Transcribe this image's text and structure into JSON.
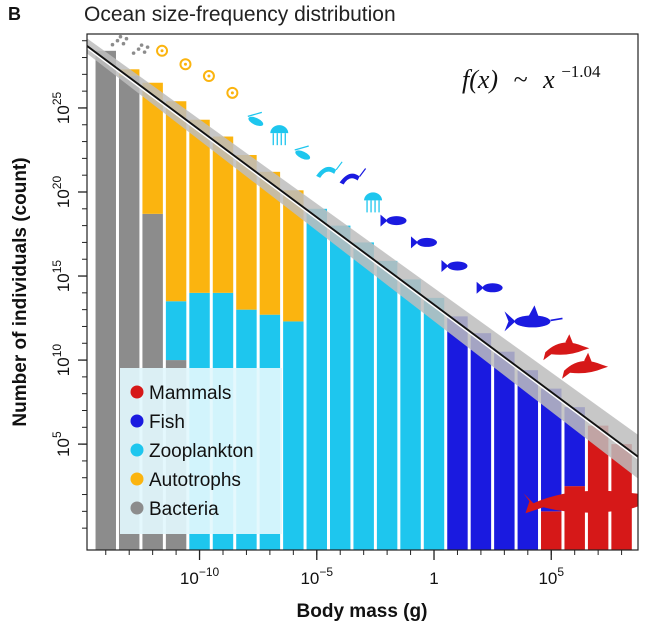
{
  "panel_letter": "B",
  "title": "Ocean size-frequency distribution",
  "formula": {
    "fx": "f(x)",
    "tilde": "~",
    "base": "x",
    "exponent": "−1.04"
  },
  "colors": {
    "bacteria": "#8c8c8c",
    "autotrophs": "#fbb40f",
    "zooplankton": "#1ec6ee",
    "fish": "#1a1ae0",
    "mammals": "#d61818"
  },
  "chart_data": {
    "type": "bar",
    "title": "Ocean size-frequency distribution",
    "xlabel": "Body mass (g)",
    "ylabel": "Number of individuals (count)",
    "x_scale": "log10",
    "y_scale": "log10",
    "xlim_log10": [
      -14.8,
      8.7
    ],
    "ylim_log10": [
      -1.3,
      29.4
    ],
    "x_ticks": [
      {
        "log10": -10,
        "label": "10",
        "exp": "−10"
      },
      {
        "log10": -5,
        "label": "10",
        "exp": "−5"
      },
      {
        "log10": 0,
        "label": "1",
        "exp": ""
      },
      {
        "log10": 5,
        "label": "10",
        "exp": "5"
      }
    ],
    "y_ticks": [
      {
        "log10": 5,
        "label": "10",
        "exp": "5"
      },
      {
        "log10": 10,
        "label": "10",
        "exp": "10"
      },
      {
        "log10": 15,
        "label": "10",
        "exp": "15"
      },
      {
        "log10": 20,
        "label": "10",
        "exp": "20"
      },
      {
        "log10": 25,
        "label": "10",
        "exp": "25"
      }
    ],
    "fit_line": {
      "slope": -1.04,
      "intercept_log10": 13.3
    },
    "legend": {
      "position": "bottom-left",
      "entries": [
        {
          "name": "Mammals",
          "color_key": "mammals"
        },
        {
          "name": "Fish",
          "color_key": "fish"
        },
        {
          "name": "Zooplankton",
          "color_key": "zooplankton"
        },
        {
          "name": "Autotrophs",
          "color_key": "autotrophs"
        },
        {
          "name": "Bacteria",
          "color_key": "bacteria"
        }
      ]
    },
    "bars": [
      {
        "mass_log10": -14.0,
        "count_log10": 28.4,
        "segments": [
          {
            "group": "bacteria",
            "top": 28.4
          }
        ]
      },
      {
        "mass_log10": -13.0,
        "count_log10": 27.3,
        "segments": [
          {
            "group": "bacteria",
            "top": 26.9
          },
          {
            "group": "autotrophs",
            "top": 27.3
          }
        ]
      },
      {
        "mass_log10": -12.0,
        "count_log10": 26.5,
        "segments": [
          {
            "group": "bacteria",
            "top": 18.7
          },
          {
            "group": "autotrophs",
            "top": 26.5
          }
        ]
      },
      {
        "mass_log10": -11.0,
        "count_log10": 25.4,
        "segments": [
          {
            "group": "bacteria",
            "top": 10.0
          },
          {
            "group": "zooplankton",
            "top": 13.5
          },
          {
            "group": "autotrophs",
            "top": 25.4
          }
        ]
      },
      {
        "mass_log10": -10.0,
        "count_log10": 24.3,
        "segments": [
          {
            "group": "zooplankton",
            "top": 14.0
          },
          {
            "group": "autotrophs",
            "top": 24.3
          }
        ]
      },
      {
        "mass_log10": -9.0,
        "count_log10": 23.3,
        "segments": [
          {
            "group": "zooplankton",
            "top": 14.0
          },
          {
            "group": "autotrophs",
            "top": 23.3
          }
        ]
      },
      {
        "mass_log10": -8.0,
        "count_log10": 22.2,
        "segments": [
          {
            "group": "zooplankton",
            "top": 13.0
          },
          {
            "group": "autotrophs",
            "top": 22.2
          }
        ]
      },
      {
        "mass_log10": -7.0,
        "count_log10": 21.2,
        "segments": [
          {
            "group": "zooplankton",
            "top": 12.7
          },
          {
            "group": "autotrophs",
            "top": 21.2
          }
        ]
      },
      {
        "mass_log10": -6.0,
        "count_log10": 20.1,
        "segments": [
          {
            "group": "zooplankton",
            "top": 12.3
          },
          {
            "group": "autotrophs",
            "top": 20.1
          }
        ]
      },
      {
        "mass_log10": -5.0,
        "count_log10": 19.0,
        "segments": [
          {
            "group": "zooplankton",
            "top": 19.0
          }
        ]
      },
      {
        "mass_log10": -4.0,
        "count_log10": 18.0,
        "segments": [
          {
            "group": "zooplankton",
            "top": 18.0
          }
        ]
      },
      {
        "mass_log10": -3.0,
        "count_log10": 17.0,
        "segments": [
          {
            "group": "zooplankton",
            "top": 17.0
          }
        ]
      },
      {
        "mass_log10": -2.0,
        "count_log10": 15.9,
        "segments": [
          {
            "group": "zooplankton",
            "top": 15.9
          }
        ]
      },
      {
        "mass_log10": -1.0,
        "count_log10": 14.8,
        "segments": [
          {
            "group": "zooplankton",
            "top": 14.8
          }
        ]
      },
      {
        "mass_log10": 0.0,
        "count_log10": 13.7,
        "segments": [
          {
            "group": "zooplankton",
            "top": 13.7
          }
        ]
      },
      {
        "mass_log10": 1.0,
        "count_log10": 12.6,
        "segments": [
          {
            "group": "fish",
            "top": 12.6
          }
        ]
      },
      {
        "mass_log10": 2.0,
        "count_log10": 11.6,
        "segments": [
          {
            "group": "fish",
            "top": 11.6
          }
        ]
      },
      {
        "mass_log10": 3.0,
        "count_log10": 10.5,
        "segments": [
          {
            "group": "fish",
            "top": 10.5
          }
        ]
      },
      {
        "mass_log10": 4.0,
        "count_log10": 9.4,
        "segments": [
          {
            "group": "fish",
            "top": 9.4
          }
        ]
      },
      {
        "mass_log10": 5.0,
        "count_log10": 8.3,
        "segments": [
          {
            "group": "mammals",
            "top": 1.0
          },
          {
            "group": "fish",
            "top": 8.3
          }
        ]
      },
      {
        "mass_log10": 6.0,
        "count_log10": 7.2,
        "segments": [
          {
            "group": "mammals",
            "top": 2.5
          },
          {
            "group": "fish",
            "top": 7.2
          }
        ]
      },
      {
        "mass_log10": 7.0,
        "count_log10": 6.1,
        "segments": [
          {
            "group": "mammals",
            "top": 6.1
          }
        ]
      },
      {
        "mass_log10": 8.0,
        "count_log10": 5.0,
        "segments": [
          {
            "group": "mammals",
            "top": 5.0
          }
        ]
      }
    ]
  },
  "silhouettes": [
    {
      "icon": "bacteria-icon",
      "group": "bacteria",
      "mass_log10": -13.5,
      "count_log10": 29.0
    },
    {
      "icon": "bacteria-icon",
      "group": "bacteria",
      "mass_log10": -12.6,
      "count_log10": 28.5
    },
    {
      "icon": "diatom-icon",
      "group": "autotrophs",
      "mass_log10": -11.6,
      "count_log10": 28.4
    },
    {
      "icon": "diatom-icon",
      "group": "autotrophs",
      "mass_log10": -10.6,
      "count_log10": 27.6
    },
    {
      "icon": "diatom-icon",
      "group": "autotrophs",
      "mass_log10": -9.6,
      "count_log10": 26.9
    },
    {
      "icon": "diatom-icon",
      "group": "autotrophs",
      "mass_log10": -8.6,
      "count_log10": 25.9
    },
    {
      "icon": "copepod-icon",
      "group": "zooplankton",
      "mass_log10": -7.6,
      "count_log10": 24.2
    },
    {
      "icon": "jellyfish-icon",
      "group": "zooplankton",
      "mass_log10": -6.6,
      "count_log10": 23.5
    },
    {
      "icon": "copepod-icon",
      "group": "zooplankton",
      "mass_log10": -5.6,
      "count_log10": 22.2
    },
    {
      "icon": "shrimp-icon",
      "group": "zooplankton",
      "mass_log10": -4.6,
      "count_log10": 21.2
    },
    {
      "icon": "shrimp-icon",
      "group": "fish",
      "mass_log10": -3.6,
      "count_log10": 20.8
    },
    {
      "icon": "jellyfish-icon",
      "group": "zooplankton",
      "mass_log10": -2.6,
      "count_log10": 19.5
    },
    {
      "icon": "fish-icon",
      "group": "fish",
      "mass_log10": -1.6,
      "count_log10": 18.3
    },
    {
      "icon": "fish-icon",
      "group": "fish",
      "mass_log10": -0.3,
      "count_log10": 17.0
    },
    {
      "icon": "fish-icon",
      "group": "fish",
      "mass_log10": 1.0,
      "count_log10": 15.6
    },
    {
      "icon": "fish-icon",
      "group": "fish",
      "mass_log10": 2.5,
      "count_log10": 14.3
    },
    {
      "icon": "swordfish-icon",
      "group": "fish",
      "mass_log10": 4.2,
      "count_log10": 12.3
    },
    {
      "icon": "dolphin-icon",
      "group": "mammals",
      "mass_log10": 5.6,
      "count_log10": 10.7
    },
    {
      "icon": "dolphin-icon",
      "group": "mammals",
      "mass_log10": 6.4,
      "count_log10": 9.6
    },
    {
      "icon": "whale-icon",
      "group": "mammals",
      "mass_log10": 6.8,
      "count_log10": 1.6
    }
  ]
}
